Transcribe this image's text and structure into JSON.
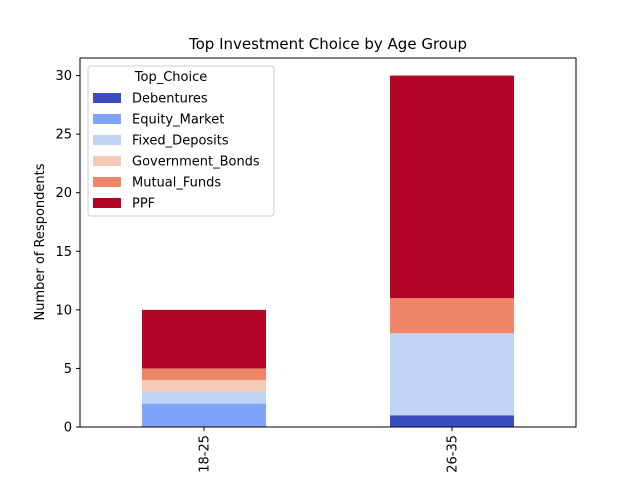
{
  "chart_data": {
    "type": "bar",
    "stacked": true,
    "title": "Top Investment Choice by Age Group",
    "xlabel": "",
    "ylabel": "Number of Respondents",
    "ylim": [
      0,
      31.5
    ],
    "yticks": [
      0,
      5,
      10,
      15,
      20,
      25,
      30
    ],
    "categories": [
      "18-25",
      "26-35"
    ],
    "legend": {
      "title": "Top_Choice",
      "placement": "top-left"
    },
    "grid": false,
    "series": [
      {
        "name": "Debentures",
        "values": [
          0,
          1
        ],
        "color": "#3b4cc0"
      },
      {
        "name": "Equity_Market",
        "values": [
          2,
          0
        ],
        "color": "#7fa3f8"
      },
      {
        "name": "Fixed_Deposits",
        "values": [
          1,
          7
        ],
        "color": "#c0d4f5"
      },
      {
        "name": "Government_Bonds",
        "values": [
          1,
          0
        ],
        "color": "#f2cab5"
      },
      {
        "name": "Mutual_Funds",
        "values": [
          1,
          3
        ],
        "color": "#ee8669"
      },
      {
        "name": "PPF",
        "values": [
          5,
          19
        ],
        "color": "#b40426"
      }
    ]
  }
}
